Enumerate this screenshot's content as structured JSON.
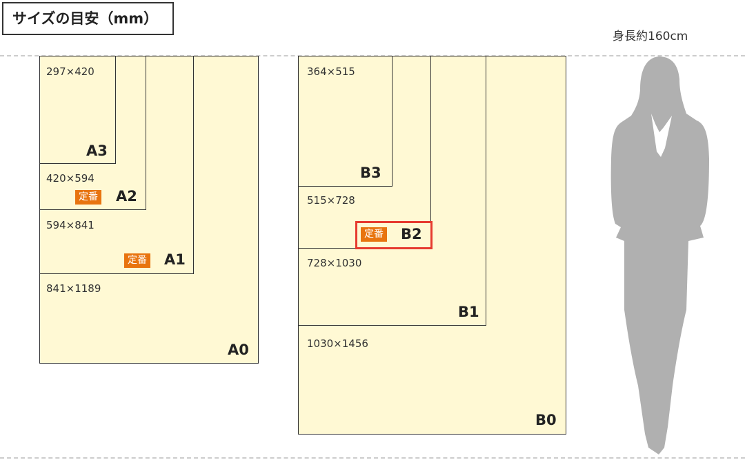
{
  "title": "サイズの目安（mm）",
  "person_label": "身長約160cm",
  "badge_label": "定番",
  "colors": {
    "paper": "#fff9d4",
    "badge": "#e8740f",
    "highlight": "#e63a2e",
    "silhouette": "#b0b0b0"
  },
  "a_series": [
    {
      "name": "A0",
      "dims": "841×1189"
    },
    {
      "name": "A1",
      "dims": "594×841",
      "standard": true
    },
    {
      "name": "A2",
      "dims": "420×594",
      "standard": true
    },
    {
      "name": "A3",
      "dims": "297×420"
    }
  ],
  "b_series": [
    {
      "name": "B0",
      "dims": "1030×1456"
    },
    {
      "name": "B1",
      "dims": "728×1030"
    },
    {
      "name": "B2",
      "dims": "515×728",
      "standard": true,
      "highlighted": true
    },
    {
      "name": "B3",
      "dims": "364×515"
    }
  ]
}
